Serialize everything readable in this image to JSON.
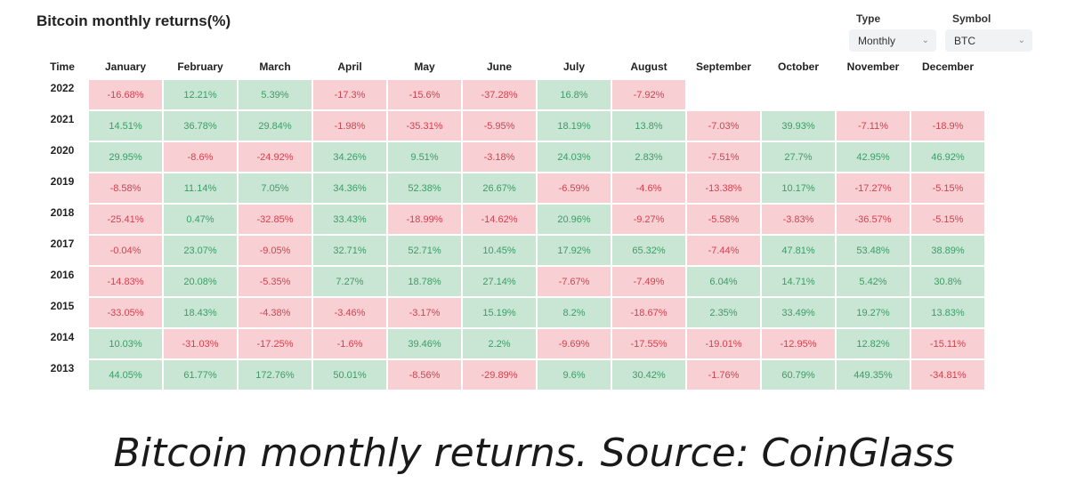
{
  "title": "Bitcoin monthly returns(%)",
  "filters": {
    "type": {
      "label": "Type",
      "value": "Monthly"
    },
    "symbol": {
      "label": "Symbol",
      "value": "BTC"
    }
  },
  "caption": "Bitcoin monthly returns. Source: CoinGlass",
  "colors": {
    "positive_bg": "#c9e6d4",
    "positive_text": "#3c9c66",
    "negative_bg": "#f8cfd3",
    "negative_text": "#d4414f"
  },
  "chart_data": {
    "type": "heatmap",
    "row_header": "Time",
    "columns": [
      "January",
      "February",
      "March",
      "April",
      "May",
      "June",
      "July",
      "August",
      "September",
      "October",
      "November",
      "December"
    ],
    "rows": [
      {
        "year": "2022",
        "values": [
          "-16.68%",
          "12.21%",
          "5.39%",
          "-17.3%",
          "-15.6%",
          "-37.28%",
          "16.8%",
          "-7.92%",
          null,
          null,
          null,
          null
        ]
      },
      {
        "year": "2021",
        "values": [
          "14.51%",
          "36.78%",
          "29.84%",
          "-1.98%",
          "-35.31%",
          "-5.95%",
          "18.19%",
          "13.8%",
          "-7.03%",
          "39.93%",
          "-7.11%",
          "-18.9%"
        ]
      },
      {
        "year": "2020",
        "values": [
          "29.95%",
          "-8.6%",
          "-24.92%",
          "34.26%",
          "9.51%",
          "-3.18%",
          "24.03%",
          "2.83%",
          "-7.51%",
          "27.7%",
          "42.95%",
          "46.92%"
        ]
      },
      {
        "year": "2019",
        "values": [
          "-8.58%",
          "11.14%",
          "7.05%",
          "34.36%",
          "52.38%",
          "26.67%",
          "-6.59%",
          "-4.6%",
          "-13.38%",
          "10.17%",
          "-17.27%",
          "-5.15%"
        ]
      },
      {
        "year": "2018",
        "values": [
          "-25.41%",
          "0.47%",
          "-32.85%",
          "33.43%",
          "-18.99%",
          "-14.62%",
          "20.96%",
          "-9.27%",
          "-5.58%",
          "-3.83%",
          "-36.57%",
          "-5.15%"
        ]
      },
      {
        "year": "2017",
        "values": [
          "-0.04%",
          "23.07%",
          "-9.05%",
          "32.71%",
          "52.71%",
          "10.45%",
          "17.92%",
          "65.32%",
          "-7.44%",
          "47.81%",
          "53.48%",
          "38.89%"
        ]
      },
      {
        "year": "2016",
        "values": [
          "-14.83%",
          "20.08%",
          "-5.35%",
          "7.27%",
          "18.78%",
          "27.14%",
          "-7.67%",
          "-7.49%",
          "6.04%",
          "14.71%",
          "5.42%",
          "30.8%"
        ]
      },
      {
        "year": "2015",
        "values": [
          "-33.05%",
          "18.43%",
          "-4.38%",
          "-3.46%",
          "-3.17%",
          "15.19%",
          "8.2%",
          "-18.67%",
          "2.35%",
          "33.49%",
          "19.27%",
          "13.83%"
        ]
      },
      {
        "year": "2014",
        "values": [
          "10.03%",
          "-31.03%",
          "-17.25%",
          "-1.6%",
          "39.46%",
          "2.2%",
          "-9.69%",
          "-17.55%",
          "-19.01%",
          "-12.95%",
          "12.82%",
          "-15.11%"
        ]
      },
      {
        "year": "2013",
        "values": [
          "44.05%",
          "61.77%",
          "172.76%",
          "50.01%",
          "-8.56%",
          "-29.89%",
          "9.6%",
          "30.42%",
          "-1.76%",
          "60.79%",
          "449.35%",
          "-34.81%"
        ]
      }
    ]
  }
}
